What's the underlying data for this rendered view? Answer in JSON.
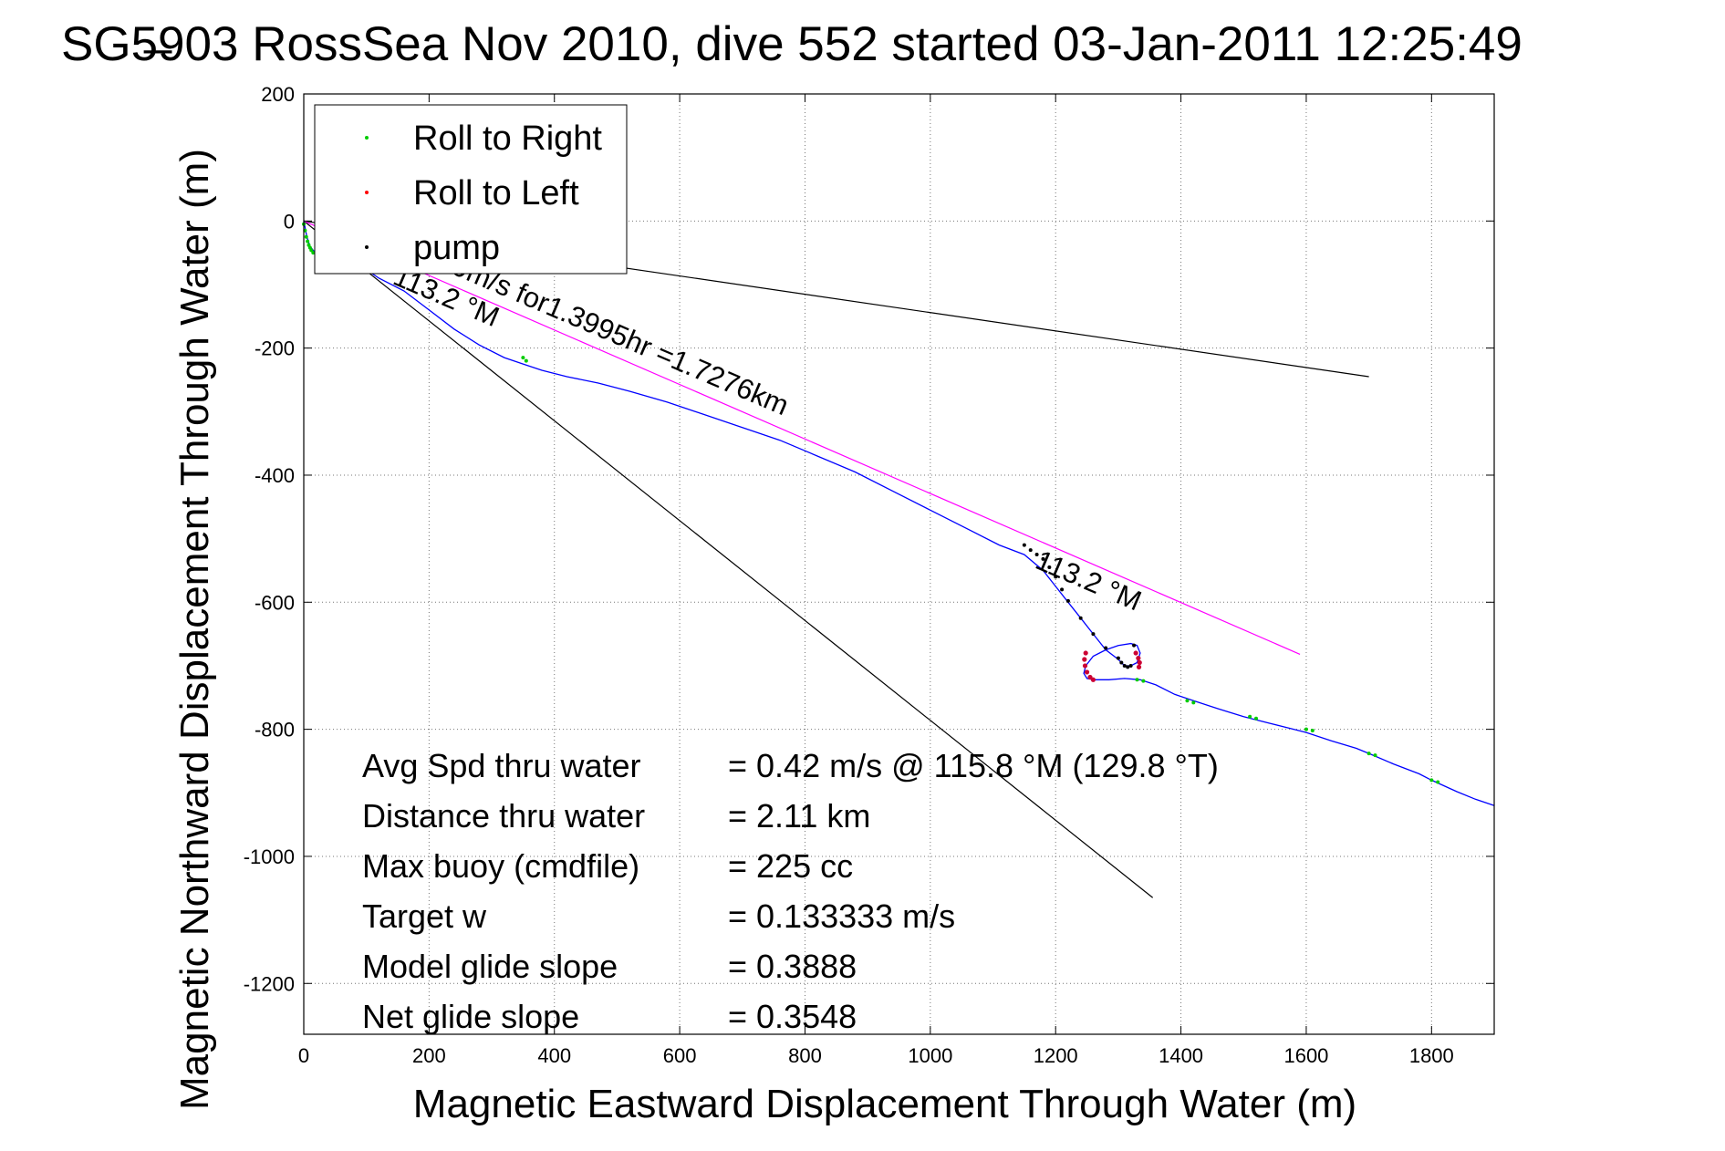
{
  "chart_data": {
    "type": "line",
    "title": "SG5̶903 RossSea Nov 2010, dive 552 started 03-Jan-2011 12:25:49",
    "xlabel": "Magnetic Eastward Displacement Through Water (m)",
    "ylabel": "Magnetic Northward Displacement Through Water (m)",
    "xlim": [
      0,
      1900
    ],
    "ylim": [
      -1280,
      200
    ],
    "xticks": [
      "0",
      "200",
      "400",
      "600",
      "800",
      "1000",
      "1200",
      "1400",
      "1600",
      "1800"
    ],
    "yticks": [
      "200",
      "0",
      "-200",
      "-400",
      "-600",
      "-800",
      "-1000",
      "-1200"
    ],
    "grid": true,
    "legend": {
      "placement": "top-left",
      "entries": [
        {
          "label": "Roll to Right",
          "color": "#00cc00"
        },
        {
          "label": "Roll to Left",
          "color": "#ff0000"
        },
        {
          "label": "pump",
          "color": "#000000"
        }
      ]
    },
    "series": [
      {
        "color": "#0000ff",
        "x": [
          0,
          2,
          5,
          10,
          20,
          35,
          60,
          90,
          120,
          160,
          200,
          240,
          280,
          320,
          350,
          380,
          420,
          470,
          520,
          580,
          640,
          700,
          760,
          820,
          880,
          940,
          1000,
          1060,
          1110,
          1150,
          1180,
          1200,
          1220,
          1240,
          1260,
          1280,
          1300,
          1310,
          1320,
          1330,
          1335,
          1330,
          1320,
          1300,
          1280,
          1260,
          1248,
          1245,
          1250,
          1262,
          1285,
          1310,
          1335,
          1360,
          1390,
          1420,
          1460,
          1500,
          1540,
          1580,
          1600,
          1640,
          1680,
          1700,
          1740,
          1780,
          1800,
          1840,
          1870,
          1900
        ],
        "y": [
          0,
          -10,
          -25,
          -40,
          -52,
          -60,
          -65,
          -70,
          -90,
          -110,
          -140,
          -170,
          -195,
          -215,
          -225,
          -235,
          -245,
          -255,
          -268,
          -285,
          -305,
          -325,
          -345,
          -370,
          -395,
          -425,
          -455,
          -485,
          -510,
          -525,
          -550,
          -575,
          -600,
          -625,
          -650,
          -675,
          -690,
          -700,
          -700,
          -695,
          -680,
          -668,
          -665,
          -668,
          -675,
          -685,
          -700,
          -712,
          -720,
          -722,
          -722,
          -720,
          -722,
          -730,
          -745,
          -755,
          -768,
          -780,
          -790,
          -800,
          -805,
          -818,
          -830,
          -838,
          -855,
          -870,
          -880,
          -898,
          -910,
          -920
        ]
      }
    ],
    "reference_lines": [
      {
        "name": "segment-upper",
        "color": "#000000",
        "x": [
          0,
          1700
        ],
        "y": [
          0,
          -245
        ]
      },
      {
        "name": "segment-lower",
        "color": "#000000",
        "x": [
          0,
          1355
        ],
        "y": [
          0,
          -1065
        ]
      },
      {
        "name": "segment-heading",
        "color": "#ff00ff",
        "x": [
          0,
          1590
        ],
        "y": [
          0,
          -682
        ]
      }
    ],
    "marker_points": {
      "roll_right": {
        "color": "#00cc00",
        "x": [
          0,
          2,
          4,
          6,
          8,
          10,
          12,
          15,
          350,
          355,
          1330,
          1340,
          1410,
          1420,
          1510,
          1520,
          1600,
          1610,
          1700,
          1710,
          1800,
          1810
        ],
        "y": [
          -5,
          -15,
          -25,
          -32,
          -38,
          -42,
          -46,
          -50,
          -215,
          -220,
          -722,
          -724,
          -755,
          -758,
          -780,
          -783,
          -800,
          -802,
          -838,
          -841,
          -880,
          -883
        ]
      },
      "roll_left": {
        "color": "#cc0033",
        "x": [
          1248,
          1246,
          1247,
          1250,
          1255,
          1260,
          1328,
          1332,
          1334,
          1333
        ],
        "y": [
          -680,
          -690,
          -700,
          -710,
          -718,
          -722,
          -680,
          -688,
          -695,
          -702
        ]
      },
      "pump": {
        "color": "#000000",
        "x": [
          1150,
          1160,
          1170,
          1180,
          1190,
          1200,
          1210,
          1220,
          1240,
          1260,
          1280,
          1300,
          1305,
          1310,
          1315,
          1320,
          1325
        ],
        "y": [
          -510,
          -518,
          -525,
          -532,
          -545,
          -560,
          -580,
          -598,
          -625,
          -650,
          -672,
          -688,
          -695,
          -700,
          -702,
          -700,
          -668
        ]
      }
    },
    "annotations": [
      {
        "text": "0.3429m/s for1.3995hr =1.7276km",
        "x": 130,
        "y": -38,
        "rotation_deg": 23.2
      },
      {
        "text": "113.2 °M",
        "x": 140,
        "y": -98,
        "rotation_deg": 23.2
      },
      {
        "text": "113.2 °M",
        "x": 1165,
        "y": -545,
        "rotation_deg": 23.2
      }
    ],
    "stats": [
      {
        "label": "Avg Spd thru water",
        "value": "=  0.42 m/s @ 115.8 °M (129.8 °T)"
      },
      {
        "label": "Distance thru water",
        "value": "=  2.11 km"
      },
      {
        "label": "Max buoy (cmdfile)",
        "value": "= 225 cc"
      },
      {
        "label": "Target w",
        "value": "= 0.133333 m/s"
      },
      {
        "label": "Model glide slope",
        "value": "= 0.3888"
      },
      {
        "label": "Net glide slope",
        "value": "= 0.3548"
      }
    ]
  }
}
